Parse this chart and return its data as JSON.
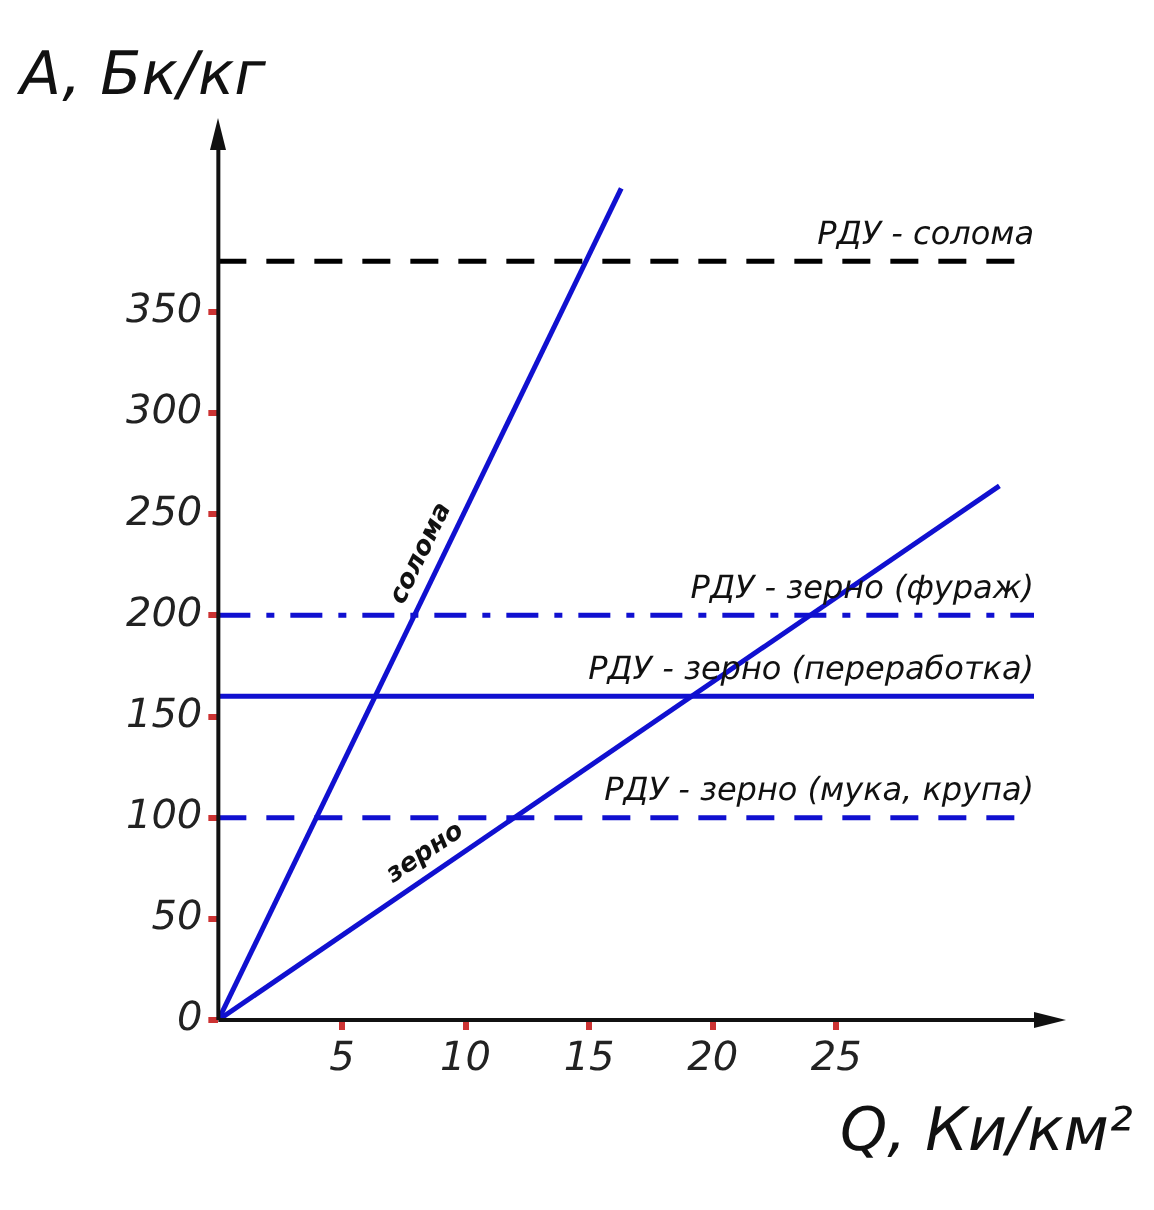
{
  "chart_data": {
    "type": "line",
    "xlabel": "Q, Ки/км²",
    "ylabel": "A, Бк/кг",
    "series": [
      {
        "name": "солома",
        "color": "#1010d0",
        "x": [
          0,
          16.3
        ],
        "values": [
          0,
          411
        ]
      },
      {
        "name": "зерно",
        "color": "#1010d0",
        "x": [
          0,
          31.6
        ],
        "values": [
          0,
          264
        ]
      }
    ],
    "xlim": [
      0,
      33
    ],
    "ylim": [
      0,
      430
    ],
    "xticks": [
      5,
      10,
      15,
      20,
      25
    ],
    "yticks": [
      0,
      50,
      100,
      150,
      200,
      250,
      300,
      350
    ],
    "ref_lines": [
      {
        "axis": "y",
        "value": 375,
        "label": "РДУ - солома",
        "color": "#000000",
        "line_style": "dashed"
      },
      {
        "axis": "y",
        "value": 200,
        "label": "РДУ - зерно (фураж)",
        "color": "#1010d0",
        "line_style": "dashdot"
      },
      {
        "axis": "y",
        "value": 160,
        "label": "РДУ - зерно (переработка)",
        "color": "#1010d0",
        "line_style": "solid"
      },
      {
        "axis": "y",
        "value": 100,
        "label": "РДУ - зерно (мука, крупа)",
        "color": "#1010d0",
        "line_style": "dashed"
      }
    ],
    "grid": false,
    "legend": false,
    "marker": "none",
    "line_style": "solid"
  }
}
